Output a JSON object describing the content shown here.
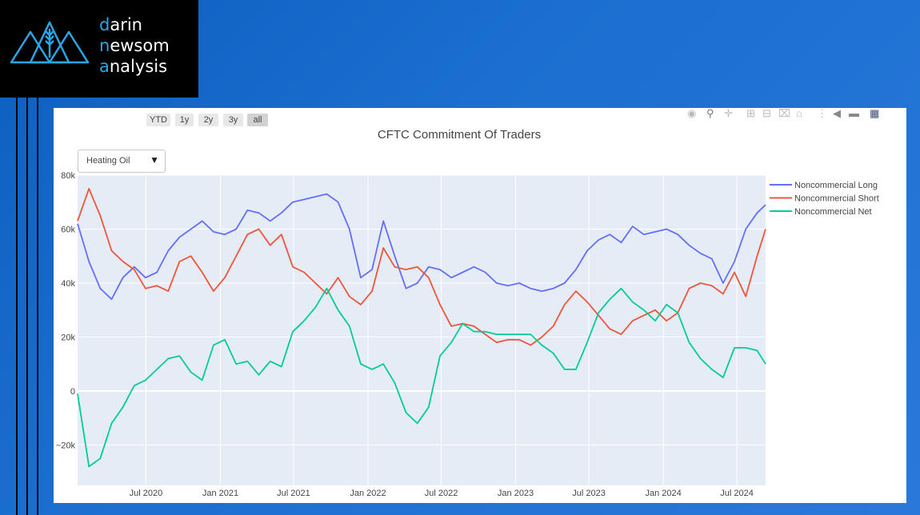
{
  "logo": {
    "line1_initial": "d",
    "line1_rest": "arin",
    "line2_initial": "n",
    "line2_rest": "ewsom",
    "line3_initial": "a",
    "line3_rest": "nalysis"
  },
  "range_buttons": [
    "YTD",
    "1y",
    "2y",
    "3y",
    "all"
  ],
  "range_active": "all",
  "dropdown": {
    "selected": "Heating Oil"
  },
  "modebar_icons": [
    "camera-icon",
    "zoom-icon",
    "pan-icon",
    "zoom-in-icon",
    "zoom-out-icon",
    "autoscale-icon",
    "reset-home-icon",
    "spike-lines-icon",
    "hover-closest-icon",
    "hover-compare-icon",
    "plotly-logo-icon"
  ],
  "colors": {
    "long": "#636efa",
    "short": "#ef553b",
    "net": "#00cc96",
    "plot_bg": "#e5ecf6"
  },
  "chart_data": {
    "type": "line",
    "title": "CFTC Commitment Of Traders",
    "xlabel": "",
    "ylabel": "",
    "xlim": [
      "2020-01-14",
      "2024-09-10"
    ],
    "ylim": [
      -35000,
      80000
    ],
    "x_ticks": [
      "Jul 2020",
      "Jan 2021",
      "Jul 2021",
      "Jan 2022",
      "Jul 2022",
      "Jan 2023",
      "Jul 2023",
      "Jan 2024",
      "Jul 2024"
    ],
    "x_tick_dates": [
      "2020-07-01",
      "2021-01-01",
      "2021-07-01",
      "2022-01-01",
      "2022-07-01",
      "2023-01-01",
      "2023-07-01",
      "2024-01-01",
      "2024-07-01"
    ],
    "y_ticks": [
      -20000,
      0,
      20000,
      40000,
      60000,
      80000
    ],
    "y_tick_labels": [
      "−20k",
      "0",
      "20k",
      "40k",
      "60k",
      "80k"
    ],
    "grid": true,
    "legend": "top-right",
    "x": [
      "2020-01-14",
      "2020-02-11",
      "2020-03-10",
      "2020-04-07",
      "2020-05-05",
      "2020-06-02",
      "2020-06-30",
      "2020-07-28",
      "2020-08-25",
      "2020-09-22",
      "2020-10-20",
      "2020-11-17",
      "2020-12-15",
      "2021-01-12",
      "2021-02-09",
      "2021-03-09",
      "2021-04-06",
      "2021-05-04",
      "2021-06-01",
      "2021-06-29",
      "2021-07-27",
      "2021-08-24",
      "2021-09-21",
      "2021-10-19",
      "2021-11-16",
      "2021-12-14",
      "2022-01-11",
      "2022-02-08",
      "2022-03-08",
      "2022-04-05",
      "2022-05-03",
      "2022-05-31",
      "2022-06-28",
      "2022-07-26",
      "2022-08-23",
      "2022-09-20",
      "2022-10-18",
      "2022-11-15",
      "2022-12-13",
      "2023-01-10",
      "2023-02-07",
      "2023-03-07",
      "2023-04-04",
      "2023-05-02",
      "2023-05-30",
      "2023-06-27",
      "2023-07-25",
      "2023-08-22",
      "2023-09-19",
      "2023-10-17",
      "2023-11-14",
      "2023-12-12",
      "2024-01-09",
      "2024-02-06",
      "2024-03-05",
      "2024-04-02",
      "2024-04-30",
      "2024-05-28",
      "2024-06-25",
      "2024-07-23",
      "2024-08-20",
      "2024-09-10"
    ],
    "series": [
      {
        "name": "Noncommercial Long",
        "values": [
          62000,
          48000,
          38000,
          34000,
          42000,
          46000,
          42000,
          44000,
          52000,
          57000,
          60000,
          63000,
          59000,
          58000,
          60000,
          67000,
          66000,
          63000,
          66000,
          70000,
          71000,
          72000,
          73000,
          70000,
          60000,
          42000,
          45000,
          63000,
          50000,
          38000,
          40000,
          46000,
          45000,
          42000,
          44000,
          46000,
          44000,
          40000,
          39000,
          40000,
          38000,
          37000,
          38000,
          40000,
          45000,
          52000,
          56000,
          58000,
          55000,
          61000,
          58000,
          59000,
          60000,
          58000,
          54000,
          51000,
          49000,
          40000,
          48000,
          60000,
          66000,
          69000
        ]
      },
      {
        "name": "Noncommercial Short",
        "values": [
          63000,
          75000,
          65000,
          52000,
          48000,
          45000,
          38000,
          39000,
          37000,
          48000,
          50000,
          44000,
          37000,
          42000,
          50000,
          58000,
          60000,
          54000,
          58000,
          46000,
          44000,
          40000,
          36000,
          42000,
          35000,
          32000,
          37000,
          53000,
          46000,
          45000,
          46000,
          42000,
          32000,
          24000,
          25000,
          24000,
          21000,
          18000,
          19000,
          19000,
          17000,
          20000,
          24000,
          32000,
          37000,
          33000,
          28000,
          23000,
          21000,
          26000,
          28000,
          30000,
          26000,
          29000,
          38000,
          40000,
          39000,
          36000,
          44000,
          35000,
          50000,
          60000
        ]
      },
      {
        "name": "Noncommercial Net",
        "values": [
          -1000,
          -28000,
          -25000,
          -12000,
          -6000,
          2000,
          4000,
          8000,
          12000,
          13000,
          7000,
          4000,
          17000,
          19000,
          10000,
          11000,
          6000,
          11000,
          9000,
          22000,
          26000,
          31000,
          38000,
          30000,
          24000,
          10000,
          8000,
          10000,
          3000,
          -8000,
          -12000,
          -6000,
          13000,
          18000,
          25000,
          22000,
          22000,
          21000,
          21000,
          21000,
          21000,
          17000,
          14000,
          8000,
          8000,
          18000,
          29000,
          34000,
          38000,
          33000,
          30000,
          26000,
          32000,
          29000,
          18000,
          12000,
          8000,
          5000,
          16000,
          16000,
          15000,
          10000
        ]
      }
    ]
  }
}
